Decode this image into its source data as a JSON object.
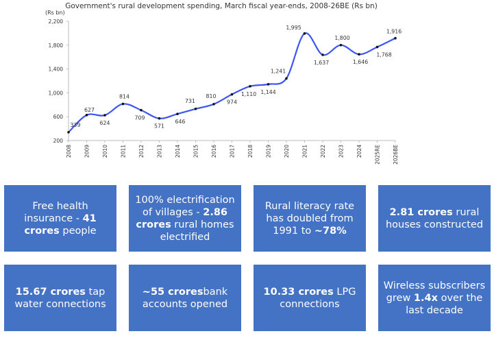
{
  "chart_data": {
    "type": "line",
    "title": "Government's rural development spending, March fiscal year-ends, 2008-26BE (Rs bn)",
    "ylabel": "(Rs bn)",
    "xlabel": "",
    "ylim": [
      200,
      2200
    ],
    "yticks": [
      "2,200",
      "1,800",
      "1,400",
      "1,000",
      "600",
      "200"
    ],
    "ytick_values": [
      2200,
      1800,
      1400,
      1000,
      600,
      200
    ],
    "categories": [
      "2008",
      "2009",
      "2010",
      "2011",
      "2012",
      "2013",
      "2014",
      "2015",
      "2016",
      "2017",
      "2018",
      "2019",
      "2020",
      "2021",
      "2022",
      "2023",
      "2024",
      "2025RE",
      "2026BE"
    ],
    "values": [
      339,
      627,
      624,
      814,
      709,
      571,
      646,
      731,
      810,
      974,
      1110,
      1144,
      1241,
      1995,
      1637,
      1800,
      1646,
      1768,
      1916
    ],
    "data_labels": [
      "339",
      "627",
      "624",
      "814",
      "709",
      "571",
      "646",
      "731",
      "810",
      "974",
      "1,110",
      "1,144",
      "1,241",
      "1,995",
      "1,637",
      "1,800",
      "1,646",
      "1,768",
      "1,916"
    ],
    "line_color": "#3d55f5",
    "grid": false,
    "smooth": true
  },
  "boxes": [
    {
      "parts": [
        {
          "text": "Free health insurance - ",
          "bold": false
        },
        {
          "text": "41 crores",
          "bold": true
        },
        {
          "text": " people",
          "bold": false
        }
      ]
    },
    {
      "parts": [
        {
          "text": "100% electrification of villages - ",
          "bold": false
        },
        {
          "text": "2.86 crores",
          "bold": true
        },
        {
          "text": " rural homes electrified",
          "bold": false
        }
      ]
    },
    {
      "parts": [
        {
          "text": "Rural literacy rate has doubled from 1991 to ",
          "bold": false
        },
        {
          "text": "~78%",
          "bold": true
        }
      ]
    },
    {
      "parts": [
        {
          "text": "2.81 crores",
          "bold": true
        },
        {
          "text": " rural houses constructed",
          "bold": false
        }
      ]
    },
    {
      "parts": [
        {
          "text": "15.67 crores",
          "bold": true
        },
        {
          "text": " tap water connections",
          "bold": false
        }
      ]
    },
    {
      "parts": [
        {
          "text": "~55 crores",
          "bold": true
        },
        {
          "text": "bank accounts opened",
          "bold": false
        }
      ]
    },
    {
      "parts": [
        {
          "text": "10.33 crores",
          "bold": true
        },
        {
          "text": " LPG connections",
          "bold": false
        }
      ]
    },
    {
      "parts": [
        {
          "text": "Wireless subscribers grew ",
          "bold": false
        },
        {
          "text": "1.4x",
          "bold": true
        },
        {
          "text": " over the last decade",
          "bold": false
        }
      ]
    }
  ],
  "box_color": "#4472c4"
}
